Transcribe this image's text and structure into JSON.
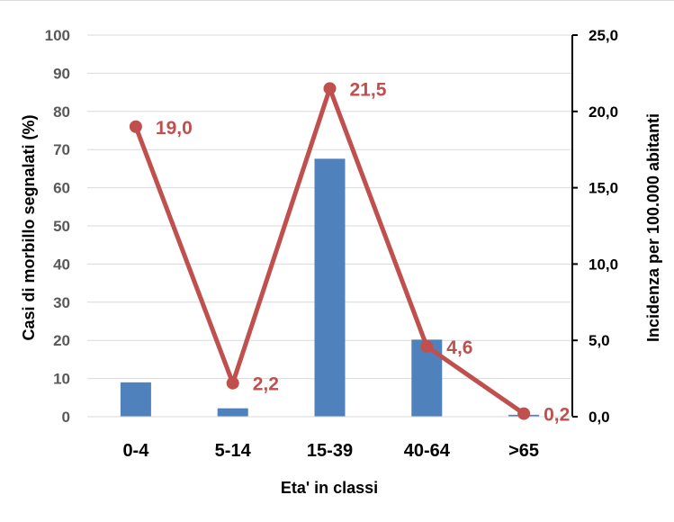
{
  "chart_data": {
    "type": "bar",
    "categories": [
      "0-4",
      "5-14",
      "15-39",
      "40-64",
      ">65"
    ],
    "series": [
      {
        "name": "",
        "type": "bar",
        "axis": "left",
        "values": [
          9,
          2.2,
          67.6,
          20.2,
          0.5
        ],
        "color": "#4f81bd"
      },
      {
        "name": "",
        "type": "line",
        "axis": "right",
        "values": [
          19.0,
          2.2,
          21.5,
          4.6,
          0.2
        ],
        "labels": [
          "19,0",
          "2,2",
          "21,5",
          "4,6",
          "0,2"
        ],
        "color": "#c0504d"
      }
    ],
    "xlabel": "Eta' in classi",
    "ylabel": "Casi di morbillo segnalati (%)",
    "y2label": "Incidenza per 100.000 abitanti",
    "ylim": [
      0,
      100
    ],
    "y2lim": [
      0,
      25
    ],
    "yticks": [
      "0",
      "10",
      "20",
      "30",
      "40",
      "50",
      "60",
      "70",
      "80",
      "90",
      "100"
    ],
    "y2ticks": [
      "0,0",
      "5,0",
      "10,0",
      "15,0",
      "20,0",
      "25,0"
    ],
    "grid": true
  }
}
